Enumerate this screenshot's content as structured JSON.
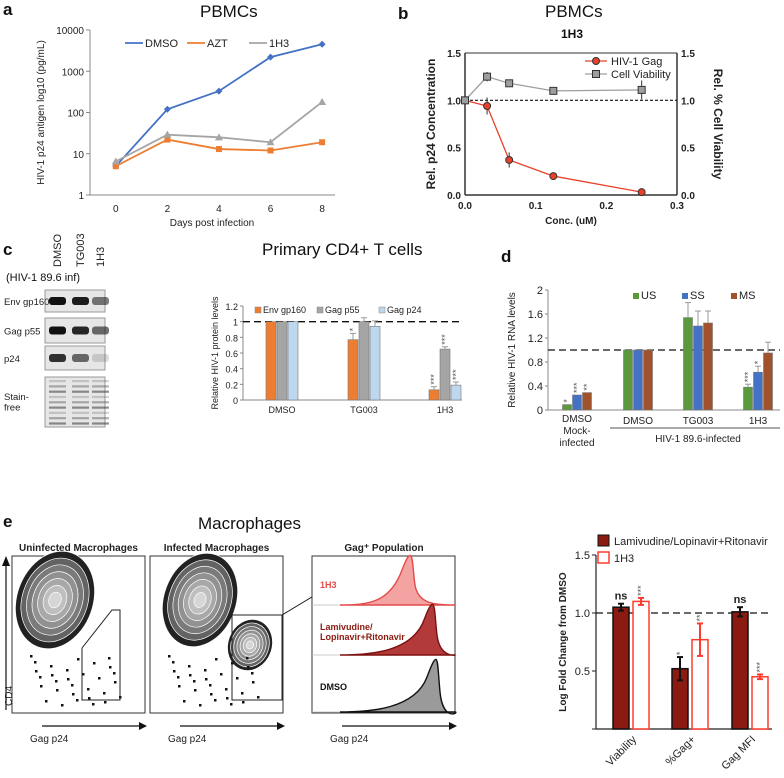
{
  "panel_labels": [
    "a",
    "b",
    "c",
    "d",
    "e"
  ],
  "colors": {
    "dmso": "#4472c4",
    "azt": "#ed7d31",
    "h3": "#a5a5a5",
    "gag": "#e8402a",
    "via": "#9e9e9e",
    "env": "#ed7d31",
    "p55": "#a5a5a5",
    "p24": "#bdd7ee",
    "us": "#5b9a3c",
    "ss": "#4472c4",
    "ms": "#a0522d",
    "lami": "#8b1a10",
    "h3e": "#ff3b2f"
  },
  "chart_data": [
    {
      "id": "a",
      "type": "line",
      "title": "PBMCs",
      "xlabel": "Days post infection",
      "ylabel": "HIV-1 p24 antigen log10 (pg/mL)",
      "yscale": "log",
      "ylim": [
        1,
        10000
      ],
      "xlim": [
        -1,
        8.5
      ],
      "x": [
        0,
        2,
        4,
        6,
        8
      ],
      "xticks": [
        "0",
        "2",
        "4",
        "6",
        "8"
      ],
      "yticks": [
        "1",
        "10",
        "100",
        "1000",
        "10000"
      ],
      "series": [
        {
          "name": "DMSO",
          "values": [
            5,
            120,
            330,
            2200,
            4500
          ]
        },
        {
          "name": "AZT",
          "values": [
            5,
            22,
            13,
            12,
            19
          ]
        },
        {
          "name": "1H3",
          "values": [
            6.5,
            29,
            25,
            19,
            180
          ]
        }
      ],
      "legend": "top"
    },
    {
      "id": "b",
      "type": "line",
      "title": "PBMCs",
      "subtitle": "1H3",
      "xlabel": "Conc. (uM)",
      "ylabel": "Rel. p24 Concentration",
      "y2label": "Rel. % Cell Viability",
      "xlim": [
        0,
        0.3
      ],
      "ylim": [
        0,
        1.5
      ],
      "xticks": [
        "0.0",
        "0.1",
        "0.2",
        "0.3"
      ],
      "yticks": [
        "0.0",
        "0.5",
        "1.0",
        "1.5"
      ],
      "x": [
        0,
        0.03125,
        0.0625,
        0.125,
        0.25
      ],
      "series": [
        {
          "name": "HIV-1 Gag",
          "values": [
            1,
            0.94,
            0.37,
            0.2,
            0.03
          ],
          "err": [
            0,
            0.09,
            0.08,
            0.01,
            0.01
          ]
        },
        {
          "name": "Cell Viability",
          "values": [
            1,
            1.25,
            1.18,
            1.1,
            1.11
          ],
          "err": [
            0,
            0.05,
            0.02,
            0.01,
            0.1
          ]
        }
      ],
      "reference_line": 1.0,
      "legend": "top-right"
    },
    {
      "id": "c",
      "type": "bar",
      "title": "Primary CD4+ T cells",
      "ylabel": "Relative HIV-1 protein levels",
      "ylim": [
        0,
        1.2
      ],
      "yticks": [
        "0",
        "0.2",
        "0.4",
        "0.6",
        "0.8",
        "1",
        "1.2"
      ],
      "categories": [
        "DMSO",
        "TG003",
        "1H3"
      ],
      "series": [
        {
          "name": "Env gp160",
          "values": [
            1,
            0.77,
            0.13
          ],
          "err": [
            0,
            0.08,
            0.04
          ],
          "sig": [
            "",
            "*",
            "***"
          ]
        },
        {
          "name": "Gag p55",
          "values": [
            1,
            1.0,
            0.65
          ],
          "err": [
            0,
            0.05,
            0.03
          ],
          "sig": [
            "",
            "",
            "***"
          ]
        },
        {
          "name": "Gag p24",
          "values": [
            1,
            0.94,
            0.19
          ],
          "err": [
            0,
            0.07,
            0.04
          ],
          "sig": [
            "",
            "",
            "***"
          ]
        }
      ],
      "reference_line": 1,
      "legend": "top"
    },
    {
      "id": "d",
      "type": "bar",
      "ylabel": "Relative HIV-1 RNA levels",
      "ylim": [
        0,
        2
      ],
      "yticks": [
        "0",
        "0.4",
        "0.8",
        "1.2",
        "1.6",
        "2"
      ],
      "categories": [
        "DMSO Mock-infected",
        "DMSO",
        "TG003",
        "1H3"
      ],
      "group_label": "HIV-1 89.6-infected",
      "series": [
        {
          "name": "US",
          "values": [
            0.09,
            1,
            1.54,
            0.38
          ],
          "err": [
            0,
            0,
            0.25,
            0.05
          ],
          "sig": [
            "*",
            "",
            "",
            "***"
          ]
        },
        {
          "name": "SS",
          "values": [
            0.25,
            1,
            1.4,
            0.63
          ],
          "err": [
            0,
            0,
            0.25,
            0.1
          ],
          "sig": [
            "***",
            "",
            "",
            "*"
          ]
        },
        {
          "name": "MS",
          "values": [
            0.29,
            1,
            1.45,
            0.95
          ],
          "err": [
            0,
            0,
            0.2,
            0.18
          ],
          "sig": [
            "**",
            "",
            "",
            ""
          ]
        }
      ],
      "reference_line": 1,
      "legend": "top"
    },
    {
      "id": "e",
      "type": "bar",
      "ylabel": "Log Fold  Change from DMSO",
      "ylim": [
        0,
        1.5
      ],
      "categories": [
        "Viability",
        "%Gag+",
        "Gag MFI"
      ],
      "series": [
        {
          "name": "Lamivudine/Lopinavir+Ritonavir",
          "values": [
            1.05,
            0.52,
            1.01
          ],
          "err": [
            0.03,
            0.1,
            0.04
          ],
          "sig": [
            "ns",
            "*",
            "ns"
          ]
        },
        {
          "name": "1H3",
          "values": [
            1.1,
            0.77,
            0.45
          ],
          "err": [
            0.03,
            0.14,
            0.02
          ],
          "sig": [
            "***",
            "**",
            "***"
          ]
        }
      ],
      "reference_line": 1,
      "legend": "top"
    }
  ],
  "blot": {
    "header": "(HIV-1 89.6 inf)",
    "lanes": [
      "DMSO",
      "TG003",
      "1H3"
    ],
    "rows": [
      "Env gp160",
      "Gag p55",
      "p24",
      "Stain-\nfree"
    ]
  },
  "flow": {
    "title": "Macrophages",
    "panels": [
      "Uninfected Macrophages",
      "Infected Macrophages",
      "Gag⁺ Population"
    ],
    "xlabel": "Gag p24",
    "ylabel": "CD4",
    "hist_labels": [
      "1H3",
      "Lamivudine/\nLopinavir+Ritonavir",
      "DMSO"
    ]
  }
}
